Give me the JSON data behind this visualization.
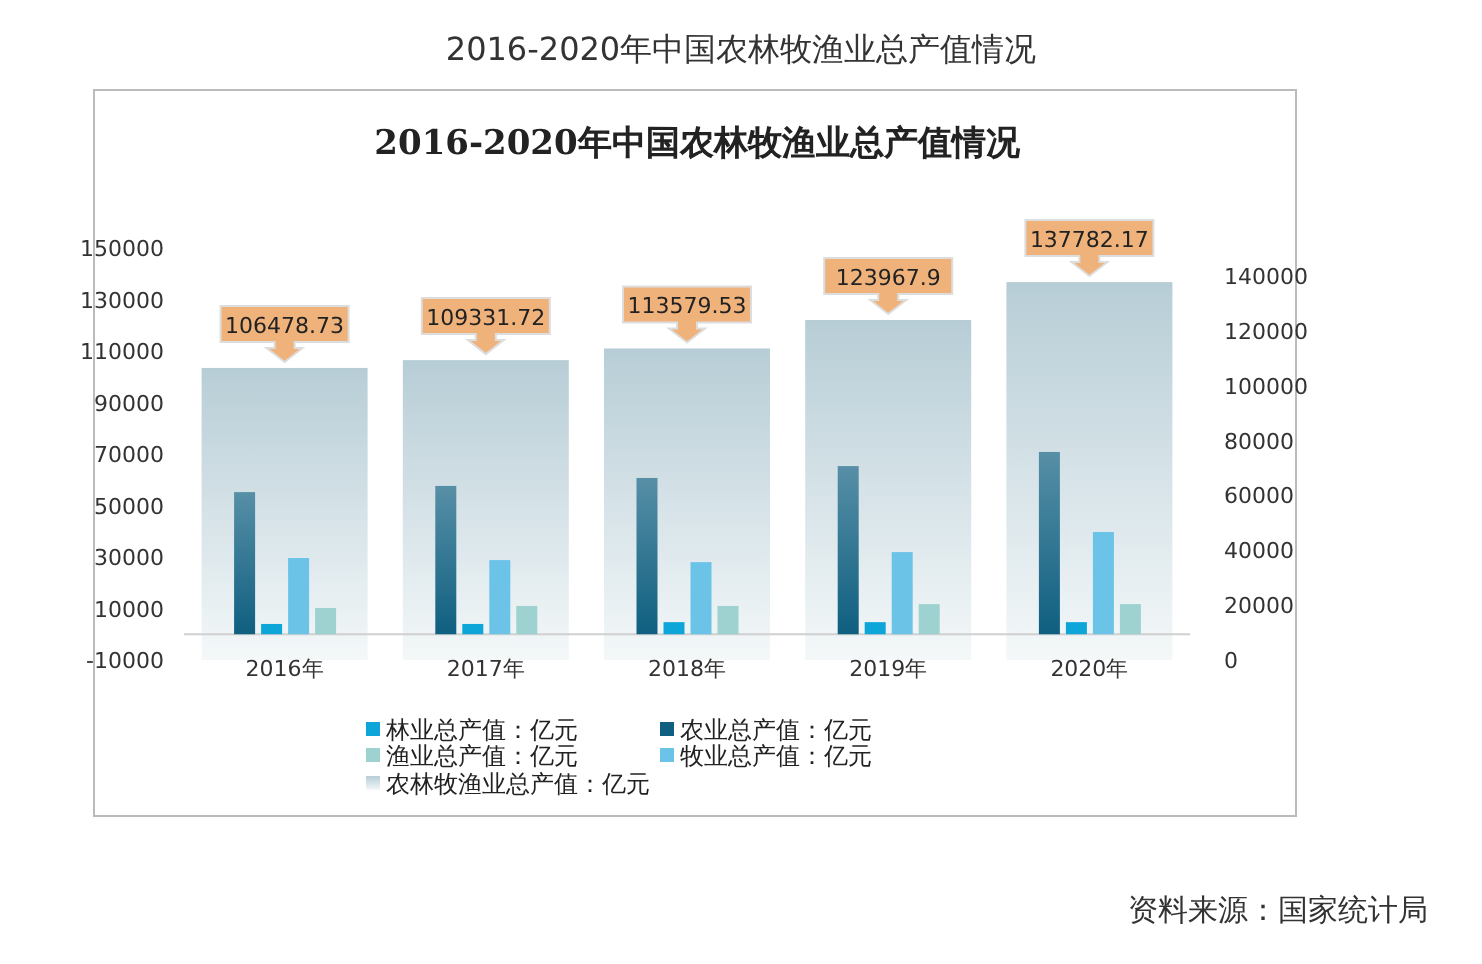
{
  "chart_data": {
    "type": "bar",
    "title": "2016-2020年中国农林牧渔业总产值情况",
    "subtitle": "2016-2020年中国农林牧渔业总产值情况",
    "categories": [
      "2016年",
      "2017年",
      "2018年",
      "2019年",
      "2020年"
    ],
    "series": [
      {
        "name": "农业总产值：亿元",
        "color": "#0f5f80",
        "values": [
          55200,
          57600,
          60700,
          65300,
          70800
        ]
      },
      {
        "name": "林业总产值：亿元",
        "color": "#0ea5d8",
        "values": [
          4000,
          4000,
          4700,
          4700,
          4700
        ]
      },
      {
        "name": "牧业总产值：亿元",
        "color": "#6cc3e8",
        "values": [
          29600,
          28800,
          28000,
          31900,
          39700
        ]
      },
      {
        "name": "渔业总产值：亿元",
        "color": "#9dd2d0",
        "values": [
          10200,
          11000,
          11000,
          11700,
          11700
        ]
      },
      {
        "name": "农林牧渔业总产值：亿元",
        "color": "#b7cdd6",
        "axis": "y2",
        "values": [
          106478.73,
          109331.72,
          113579.53,
          123967.9,
          137782.17
        ],
        "value_labels": [
          "106478.73",
          "109331.72",
          "113579.53",
          "123967.9",
          "137782.17"
        ]
      }
    ],
    "ylim": [
      -10000,
      150000
    ],
    "yticks": [
      -10000,
      10000,
      30000,
      50000,
      70000,
      90000,
      110000,
      130000,
      150000
    ],
    "y2lim": [
      0,
      140000
    ],
    "y2ticks": [
      0,
      20000,
      40000,
      60000,
      80000,
      100000,
      120000,
      140000
    ],
    "legend": "bottom",
    "grid": false,
    "annotations": [
      "资料来源：国家统计局"
    ]
  }
}
